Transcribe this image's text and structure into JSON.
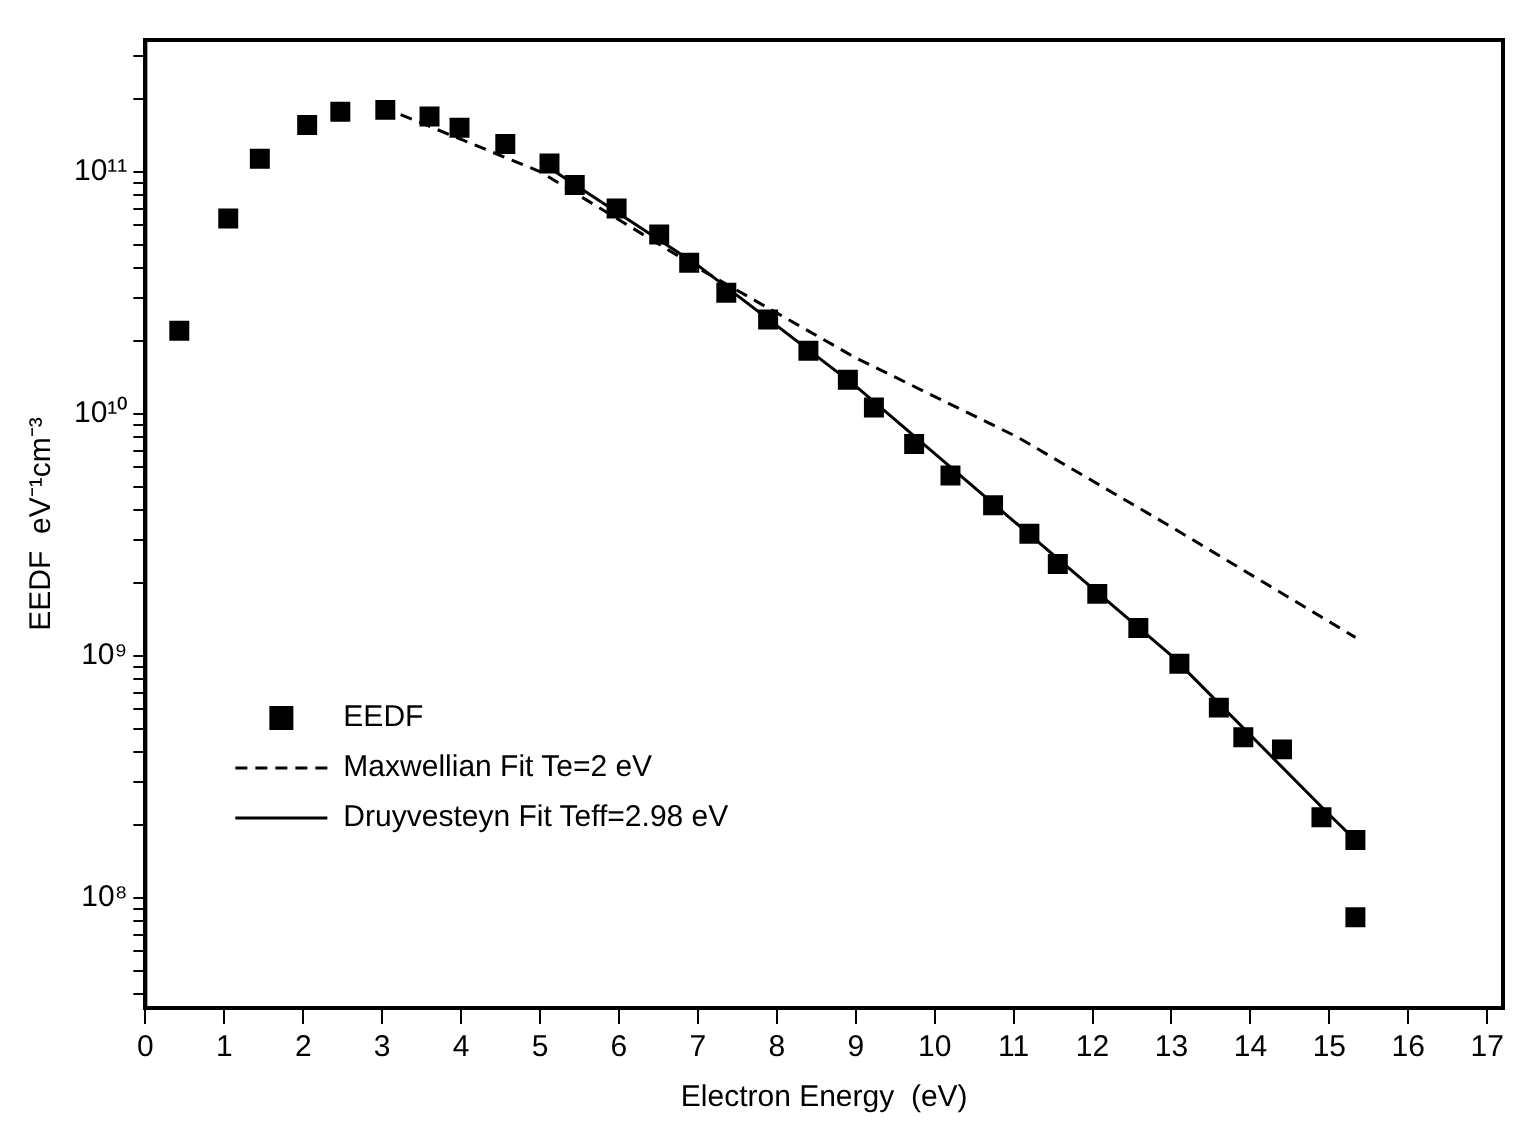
{
  "chart_data": {
    "type": "scatter",
    "xlabel": "Electron Energy  (eV)",
    "ylabel": "EEDF  eV⁻¹cm⁻³",
    "log": "y",
    "grid": false,
    "legend": "bottom left",
    "xlim": [
      0,
      17.2
    ],
    "xticks": [
      0,
      1,
      2,
      3,
      4,
      5,
      6,
      7,
      8,
      9,
      10,
      11,
      12,
      13,
      14,
      15,
      16,
      17
    ],
    "ylim": [
      35000000.0,
      350000000000.0
    ],
    "yticks": [
      {
        "value": 40000000.0,
        "label": null
      },
      {
        "value": 50000000.0,
        "label": null
      },
      {
        "value": 60000000.0,
        "label": null
      },
      {
        "value": 70000000.0,
        "label": null
      },
      {
        "value": 80000000.0,
        "label": null
      },
      {
        "value": 90000000.0,
        "label": null
      },
      {
        "value": 100000000.0,
        "label": "10⁸"
      },
      {
        "value": 200000000.0,
        "label": null
      },
      {
        "value": 300000000.0,
        "label": null
      },
      {
        "value": 400000000.0,
        "label": null
      },
      {
        "value": 500000000.0,
        "label": null
      },
      {
        "value": 600000000.0,
        "label": null
      },
      {
        "value": 700000000.0,
        "label": null
      },
      {
        "value": 800000000.0,
        "label": null
      },
      {
        "value": 900000000.0,
        "label": null
      },
      {
        "value": 1000000000.0,
        "label": "10⁹"
      },
      {
        "value": 2000000000.0,
        "label": null
      },
      {
        "value": 3000000000.0,
        "label": null
      },
      {
        "value": 4000000000.0,
        "label": null
      },
      {
        "value": 5000000000.0,
        "label": null
      },
      {
        "value": 6000000000.0,
        "label": null
      },
      {
        "value": 7000000000.0,
        "label": null
      },
      {
        "value": 8000000000.0,
        "label": null
      },
      {
        "value": 9000000000.0,
        "label": null
      },
      {
        "value": 10000000000.0,
        "label": "10¹⁰"
      },
      {
        "value": 20000000000.0,
        "label": null
      },
      {
        "value": 30000000000.0,
        "label": null
      },
      {
        "value": 40000000000.0,
        "label": null
      },
      {
        "value": 50000000000.0,
        "label": null
      },
      {
        "value": 60000000000.0,
        "label": null
      },
      {
        "value": 70000000000.0,
        "label": null
      },
      {
        "value": 80000000000.0,
        "label": null
      },
      {
        "value": 90000000000.0,
        "label": null
      },
      {
        "value": 100000000000.0,
        "label": "10¹¹"
      },
      {
        "value": 200000000000.0,
        "label": null
      },
      {
        "value": 300000000000.0,
        "label": null
      }
    ],
    "series": [
      {
        "name": "EEDF",
        "marker": "square",
        "color": "#000000",
        "x": [
          0.43,
          1.05,
          1.45,
          2.05,
          2.47,
          3.04,
          3.6,
          3.98,
          4.56,
          5.12,
          5.44,
          5.97,
          6.51,
          6.89,
          7.36,
          7.89,
          8.4,
          8.9,
          9.23,
          9.74,
          10.2,
          10.74,
          11.2,
          11.56,
          12.06,
          12.58,
          13.1,
          13.6,
          13.91,
          14.4,
          14.9,
          15.33,
          15.33
        ],
        "values": [
          22000000000.0,
          64000000000.0,
          113000000000.0,
          156000000000.0,
          177000000000.0,
          180000000000.0,
          169000000000.0,
          152000000000.0,
          130000000000.0,
          108000000000.0,
          88000000000.0,
          70500000000.0,
          55000000000.0,
          42000000000.0,
          31600000000.0,
          24500000000.0,
          18200000000.0,
          13800000000.0,
          10600000000.0,
          7500000000.0,
          5550000000.0,
          4180000000.0,
          3190000000.0,
          2390000000.0,
          1800000000.0,
          1300000000.0,
          925000000.0,
          610000000.0,
          460000000.0,
          410000000.0,
          215000000.0,
          173000000.0,
          83000000.0
        ]
      },
      {
        "name": "Maxwellian Fit Te=2 eV",
        "type": "line",
        "marker": "none",
        "line_style": "dashed",
        "color": "#000000",
        "x": [
          3,
          5,
          7,
          9,
          11.05,
          13,
          15.33
        ],
        "values": [
          185000000000.0,
          100000000000.0,
          40000000000.0,
          17000000000.0,
          8000000000.0,
          3400000000.0,
          1190000000.0
        ]
      },
      {
        "name": "Druyvesteyn Fit Teff=2.98 eV",
        "type": "line",
        "marker": "none",
        "line_style": "solid",
        "color": "#000000",
        "x": [
          5,
          7,
          9,
          11,
          13,
          15,
          15.33
        ],
        "values": [
          110000000000.0,
          41000000000.0,
          13000000000.0,
          3600000000.0,
          1000000000.0,
          220000000.0,
          173000000.0
        ]
      }
    ]
  }
}
